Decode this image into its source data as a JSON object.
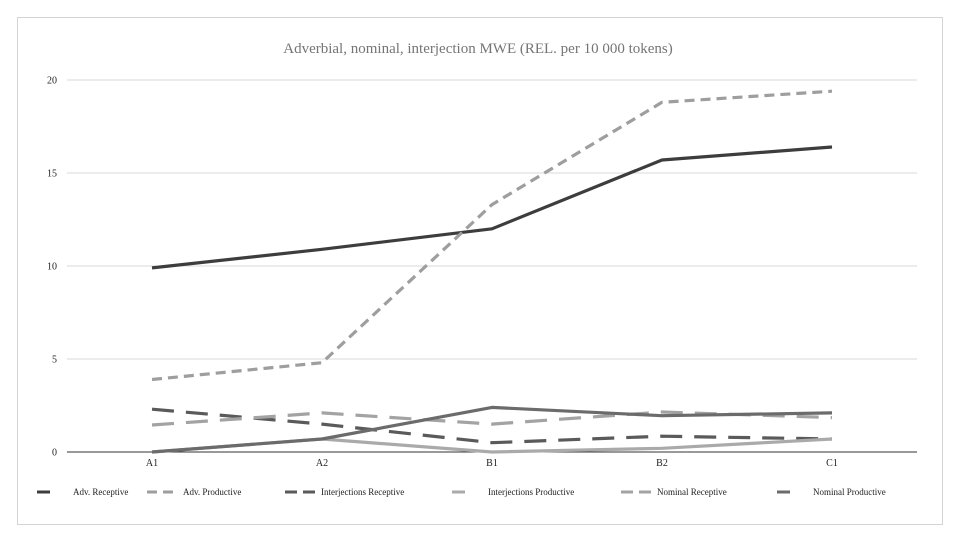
{
  "chart_data": {
    "type": "line",
    "title": "Adverbial, nominal, interjection MWE (REL. per 10 000 tokens)",
    "xlabel": "",
    "ylabel": "",
    "categories": [
      "A1",
      "A2",
      "B1",
      "B2",
      "C1"
    ],
    "ylim": [
      0,
      20
    ],
    "yticks": [
      0,
      5,
      10,
      15,
      20
    ],
    "grid": true,
    "legend_position": "bottom",
    "series": [
      {
        "name": "Adv. Receptive",
        "values": [
          9.9,
          10.9,
          12.0,
          15.7,
          16.4
        ],
        "color": "#3d3d3d",
        "dash": "solid"
      },
      {
        "name": "Adv. Productive",
        "values": [
          3.9,
          4.8,
          13.3,
          18.8,
          19.4
        ],
        "color": "#9e9e9e",
        "dash": "short"
      },
      {
        "name": "Interjections Receptive",
        "values": [
          2.3,
          1.5,
          0.5,
          0.85,
          0.7
        ],
        "color": "#5a5a5a",
        "dash": "long"
      },
      {
        "name": "Interjections Productive",
        "values": [
          0.0,
          0.7,
          0.0,
          0.2,
          0.7
        ],
        "color": "#aaaaaa",
        "dash": "solid"
      },
      {
        "name": "Nominal Receptive",
        "values": [
          1.45,
          2.1,
          1.5,
          2.15,
          1.85
        ],
        "color": "#a3a3a3",
        "dash": "long"
      },
      {
        "name": "Nominal Productive",
        "values": [
          0.0,
          0.7,
          2.4,
          1.95,
          2.1
        ],
        "color": "#6b6b6b",
        "dash": "solid"
      }
    ]
  }
}
